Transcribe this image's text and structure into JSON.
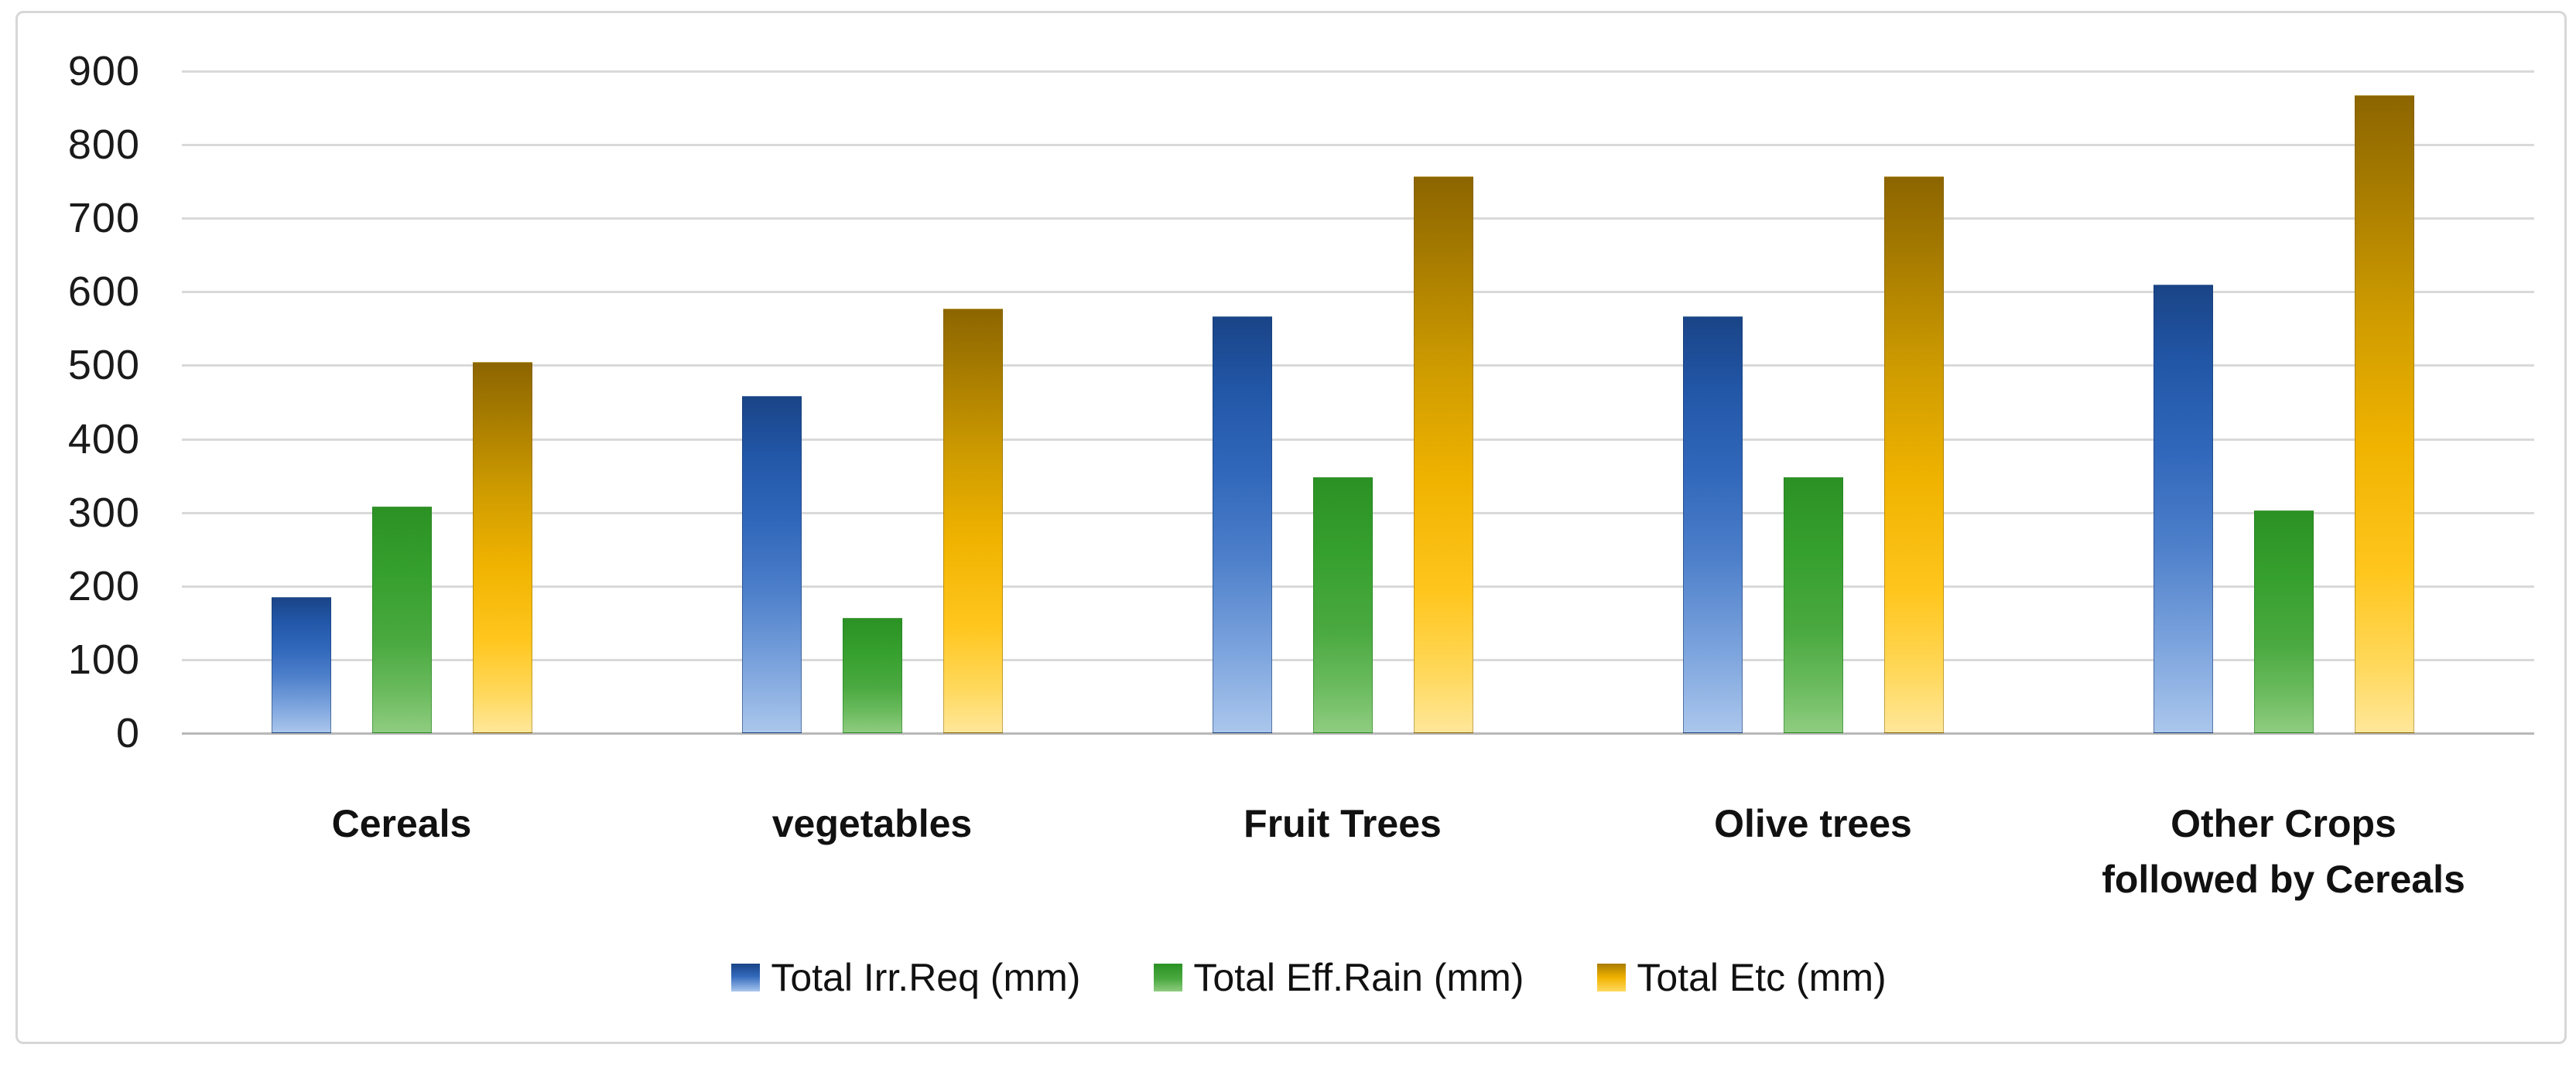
{
  "chart_data": {
    "type": "bar",
    "title": "",
    "xlabel": "",
    "ylabel": "",
    "categories": [
      "Cereals",
      "vegetables",
      "Fruit Trees",
      "Olive trees",
      "Other Crops\nfollowed by Cereals"
    ],
    "series": [
      {
        "name": "Total Irr.Req (mm)",
        "color": "#2e64b1",
        "values": [
          185,
          458,
          567,
          567,
          610
        ]
      },
      {
        "name": "Total Eff.Rain (mm)",
        "color": "#3da035",
        "values": [
          308,
          157,
          348,
          348,
          303
        ]
      },
      {
        "name": "Total Etc (mm)",
        "color": "#f0b300",
        "values": [
          505,
          577,
          757,
          757,
          867
        ]
      }
    ],
    "ylim": [
      0,
      900
    ],
    "ytick_step": 100,
    "grid": true,
    "legend_position": "bottom"
  },
  "colors": {
    "background": "#ffffff",
    "frame_border": "#d7d7d7",
    "gridline": "#d9d9d9",
    "axis_line": "#b8b8b8",
    "text": "#1a1a1a",
    "series_blue_top": "#1a4487",
    "series_blue_bottom": "#aac6ec",
    "series_green_top": "#2b9124",
    "series_green_bottom": "#8fcc80",
    "series_gold_top": "#8c6500",
    "series_gold_bottom": "#ffe79a"
  }
}
